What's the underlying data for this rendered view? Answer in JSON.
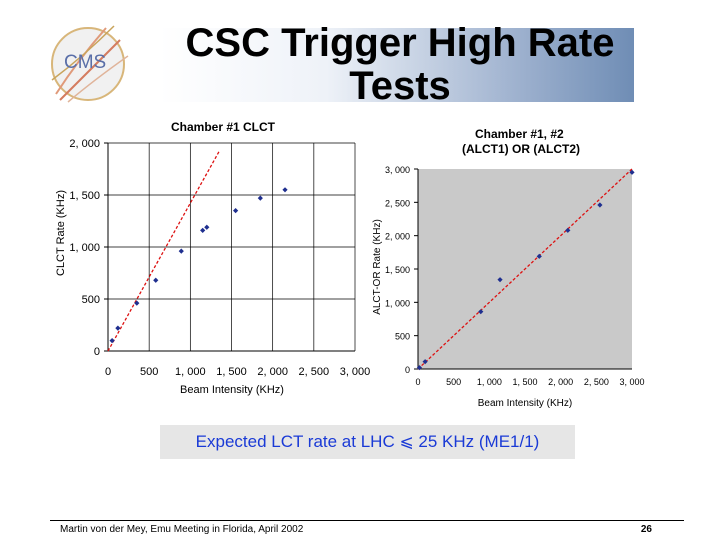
{
  "slide": {
    "title": "CSC Trigger High Rate Tests",
    "logo_text": "CMS",
    "callout": "Expected LCT rate at LHC ⩽ 25 KHz (ME1/1)",
    "footer": "Martin von der Mey, Emu Meeting in Florida, April 2002",
    "page_number": "26"
  },
  "colors": {
    "points": "#1f2f8f",
    "fit_line": "#dd1111",
    "plot_bg_right": "#c9c9c9",
    "callout_text": "#1a3ad6"
  },
  "chart_data": [
    {
      "type": "scatter",
      "title": "Chamber #1  CLCT",
      "xlabel": "Beam Intensity (KHz)",
      "ylabel": "CLCT Rate (KHz)",
      "xlim": [
        0,
        3000
      ],
      "ylim": [
        0,
        2000
      ],
      "xticks": [
        0,
        500,
        1000,
        1500,
        2000,
        2500,
        3000
      ],
      "xtick_labels": [
        "0",
        "500",
        "1, 000",
        "1, 500",
        "2, 000",
        "2, 500",
        "3, 000"
      ],
      "yticks": [
        0,
        500,
        1000,
        1500,
        2000
      ],
      "ytick_labels": [
        "0",
        "500",
        "1, 000",
        "1, 500",
        "2, 000"
      ],
      "grid": true,
      "series": [
        {
          "name": "data",
          "x": [
            50,
            120,
            350,
            580,
            890,
            1150,
            1200,
            1550,
            1850,
            2150
          ],
          "y": [
            100,
            220,
            460,
            680,
            960,
            1160,
            1190,
            1350,
            1470,
            1550
          ]
        }
      ],
      "fit_line": {
        "x": [
          0,
          1350
        ],
        "y": [
          0,
          1920
        ]
      }
    },
    {
      "type": "scatter",
      "title": "Chamber #1, #2\n(ALCT1) OR (ALCT2)",
      "xlabel": "Beam Intensity (KHz)",
      "ylabel": "ALCT-OR Rate (KHz)",
      "xlim": [
        0,
        3000
      ],
      "ylim": [
        0,
        3000
      ],
      "xticks": [
        0,
        500,
        1000,
        1500,
        2000,
        2500,
        3000
      ],
      "xtick_labels": [
        "0",
        "500",
        "1, 000",
        "1, 500",
        "2, 000",
        "2, 500",
        "3, 000"
      ],
      "yticks": [
        0,
        500,
        1000,
        1500,
        2000,
        2500,
        3000
      ],
      "ytick_labels": [
        "0",
        "500",
        "1, 000",
        "1, 500",
        "2, 000",
        "2, 500",
        "3, 000"
      ],
      "grid": false,
      "series": [
        {
          "name": "data",
          "x": [
            20,
            100,
            880,
            1150,
            1700,
            2100,
            2550,
            3000
          ],
          "y": [
            20,
            110,
            860,
            1340,
            1690,
            2080,
            2460,
            2950
          ]
        }
      ],
      "fit_line": {
        "x": [
          0,
          3000
        ],
        "y": [
          0,
          3000
        ]
      }
    }
  ]
}
